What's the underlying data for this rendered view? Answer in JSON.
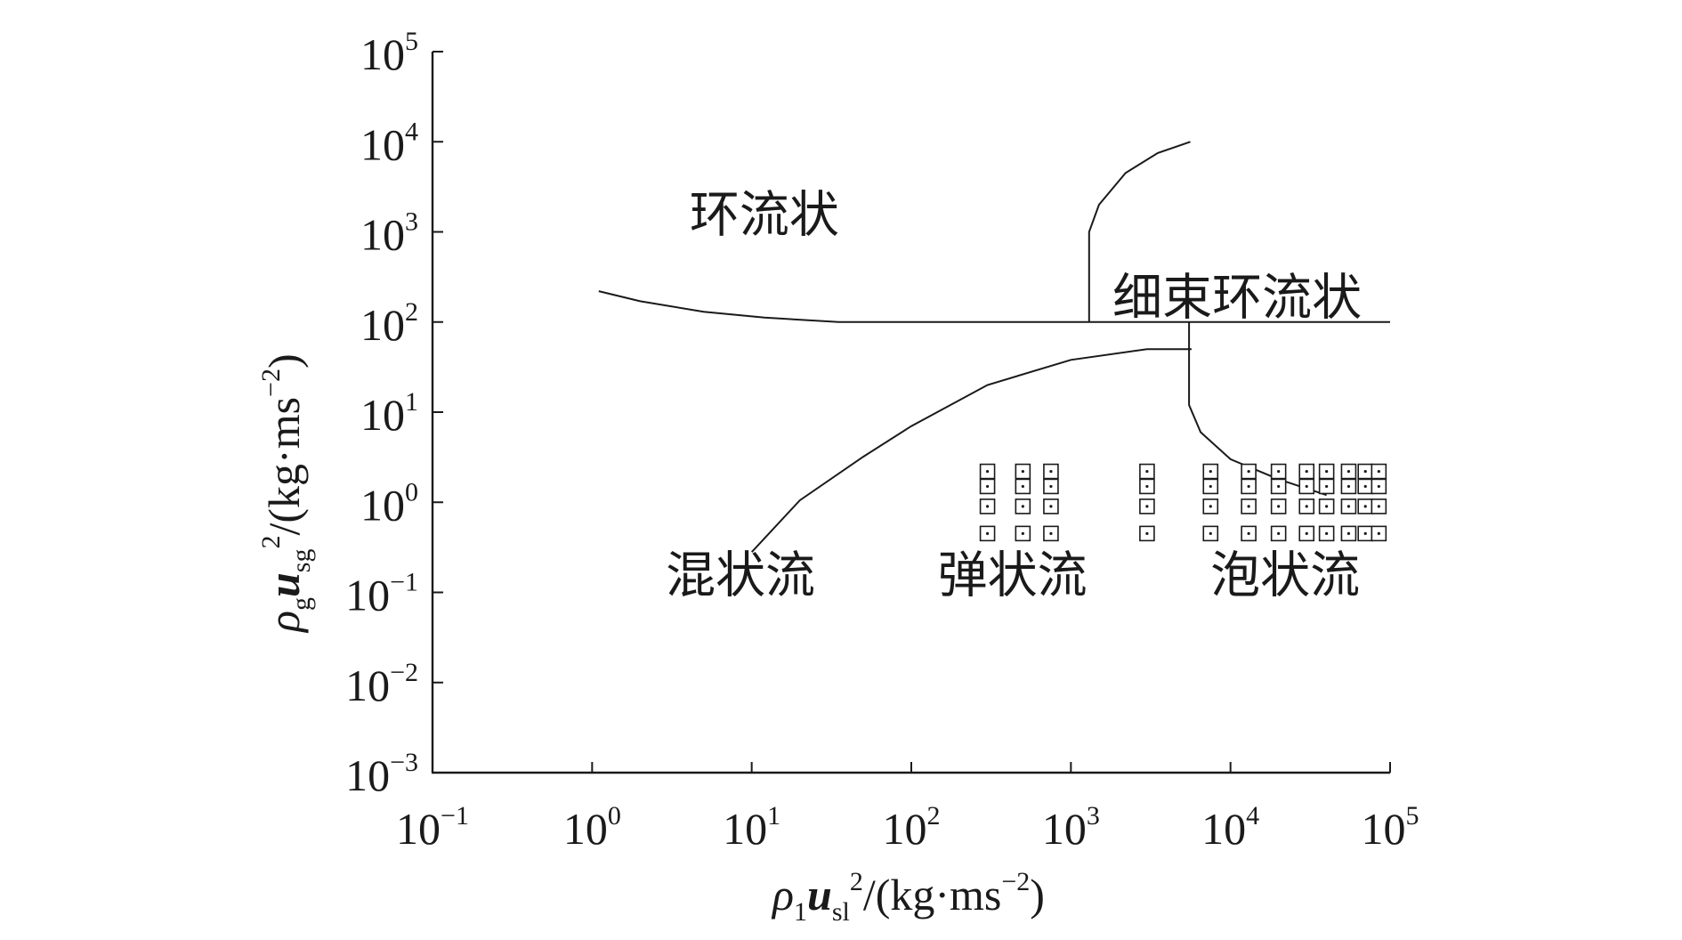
{
  "chart_data": {
    "type": "scatter",
    "title": "",
    "x_axis": {
      "label_parts": [
        "ρ",
        "1",
        "u",
        "sl",
        "2",
        "/(kg·ms",
        "−2",
        ")"
      ],
      "scale": "log",
      "range": [
        0.1,
        100000
      ],
      "ticks": [
        {
          "base": "10",
          "exp": "−1",
          "value": 0.1
        },
        {
          "base": "10",
          "exp": "0",
          "value": 1
        },
        {
          "base": "10",
          "exp": "1",
          "value": 10
        },
        {
          "base": "10",
          "exp": "2",
          "value": 100
        },
        {
          "base": "10",
          "exp": "3",
          "value": 1000
        },
        {
          "base": "10",
          "exp": "4",
          "value": 10000
        },
        {
          "base": "10",
          "exp": "5",
          "value": 100000
        }
      ]
    },
    "y_axis": {
      "label_parts": [
        "ρ",
        "g",
        "u",
        "sg",
        "2",
        "/(kg·ms",
        "−2",
        ")"
      ],
      "scale": "log",
      "range": [
        0.001,
        100000
      ],
      "ticks": [
        {
          "base": "10",
          "exp": "−3",
          "value": 0.001
        },
        {
          "base": "10",
          "exp": "−2",
          "value": 0.01
        },
        {
          "base": "10",
          "exp": "−1",
          "value": 0.1
        },
        {
          "base": "10",
          "exp": "0",
          "value": 1
        },
        {
          "base": "10",
          "exp": "1",
          "value": 10
        },
        {
          "base": "10",
          "exp": "2",
          "value": 100
        },
        {
          "base": "10",
          "exp": "3",
          "value": 1000
        },
        {
          "base": "10",
          "exp": "4",
          "value": 10000
        },
        {
          "base": "10",
          "exp": "5",
          "value": 100000
        }
      ]
    },
    "grid": false,
    "legend": "none",
    "regions": [
      {
        "label": "环流状",
        "x": 12,
        "y": 1000
      },
      {
        "label": "细束环流状",
        "x": 11000,
        "y": 120
      },
      {
        "label": "混状流",
        "x": 8.5,
        "y": 0.1
      },
      {
        "label": "弹状流",
        "x": 430,
        "y": 0.1
      },
      {
        "label": "泡状流",
        "x": 22000,
        "y": 0.1
      }
    ],
    "boundaries": [
      {
        "name": "annular-lower",
        "points": [
          [
            1.1,
            220
          ],
          [
            2,
            170
          ],
          [
            5,
            130
          ],
          [
            12,
            112
          ],
          [
            35,
            100
          ],
          [
            100,
            100
          ],
          [
            1000,
            100
          ],
          [
            100000,
            100
          ]
        ]
      },
      {
        "name": "wispy-left",
        "points": [
          [
            1300,
            100
          ],
          [
            1300,
            1000
          ],
          [
            1500,
            2000
          ],
          [
            2200,
            4500
          ],
          [
            3500,
            7500
          ],
          [
            5600,
            10000
          ]
        ]
      },
      {
        "name": "churn-slug",
        "points": [
          [
            10,
            0.28
          ],
          [
            20,
            1.05
          ],
          [
            50,
            3.2
          ],
          [
            100,
            7
          ],
          [
            300,
            20
          ],
          [
            1000,
            38
          ],
          [
            3000,
            50
          ],
          [
            5700,
            50
          ]
        ]
      },
      {
        "name": "bubble-left",
        "points": [
          [
            5500,
            100
          ],
          [
            5500,
            50
          ],
          [
            5500,
            12
          ],
          [
            6500,
            6
          ],
          [
            10000,
            3
          ],
          [
            20000,
            1.8
          ],
          [
            40000,
            1.2
          ]
        ]
      }
    ],
    "series": [
      {
        "marker": "square-dot",
        "points": [
          [
            300,
            2.2
          ],
          [
            300,
            1.5
          ],
          [
            300,
            0.9
          ],
          [
            300,
            0.45
          ],
          [
            500,
            2.2
          ],
          [
            500,
            1.5
          ],
          [
            500,
            0.9
          ],
          [
            500,
            0.45
          ],
          [
            750,
            2.2
          ],
          [
            750,
            1.5
          ],
          [
            750,
            0.9
          ],
          [
            750,
            0.45
          ],
          [
            3000,
            2.2
          ],
          [
            3000,
            1.5
          ],
          [
            3000,
            0.9
          ],
          [
            3000,
            0.45
          ],
          [
            7500,
            2.2
          ],
          [
            7500,
            1.5
          ],
          [
            7500,
            0.9
          ],
          [
            7500,
            0.45
          ],
          [
            13000,
            2.2
          ],
          [
            13000,
            1.5
          ],
          [
            13000,
            0.9
          ],
          [
            13000,
            0.45
          ],
          [
            20000,
            2.2
          ],
          [
            20000,
            1.5
          ],
          [
            20000,
            0.9
          ],
          [
            20000,
            0.45
          ],
          [
            30000,
            2.2
          ],
          [
            30000,
            1.5
          ],
          [
            30000,
            0.9
          ],
          [
            30000,
            0.45
          ],
          [
            40000,
            2.2
          ],
          [
            40000,
            1.5
          ],
          [
            40000,
            0.9
          ],
          [
            40000,
            0.45
          ],
          [
            55000,
            2.2
          ],
          [
            55000,
            1.5
          ],
          [
            55000,
            0.9
          ],
          [
            55000,
            0.45
          ],
          [
            70000,
            2.2
          ],
          [
            70000,
            1.5
          ],
          [
            70000,
            0.9
          ],
          [
            70000,
            0.45
          ],
          [
            85000,
            2.2
          ],
          [
            85000,
            1.5
          ],
          [
            85000,
            0.9
          ],
          [
            85000,
            0.45
          ]
        ]
      }
    ]
  }
}
